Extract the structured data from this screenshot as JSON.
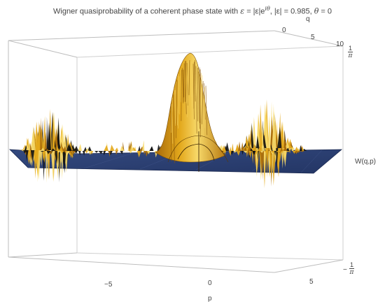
{
  "chart_data": {
    "type": "surface3d",
    "title_parts": {
      "prefix": "Wigner quasiprobability of a coherent phase state with ",
      "eps_symbol": "ε",
      "eq_expr": " = |ε|e",
      "exponent": "iθ",
      "abs_expr": ", |ε| = 0.985, ",
      "theta_symbol": "θ",
      "theta_expr": " = 0"
    },
    "xlabel": "p",
    "ylabel": "q",
    "zlabel": "W(q,p)",
    "p_ticks": [
      "−5",
      "0",
      "5"
    ],
    "q_ticks": [
      "0",
      "5",
      "10"
    ],
    "z_ticks": {
      "top_num": "1",
      "top_den": "π",
      "bottom_sign": "−",
      "bottom_num": "1",
      "bottom_den": "π"
    },
    "epsilon_abs": 0.985,
    "theta": 0,
    "colors": {
      "surface_gold": "#e3a81c",
      "surface_dark": "#a76a0a",
      "surface_light": "#f7d96a",
      "plane_blue": "#2c3f75",
      "box": "#c8c8c8"
    }
  }
}
